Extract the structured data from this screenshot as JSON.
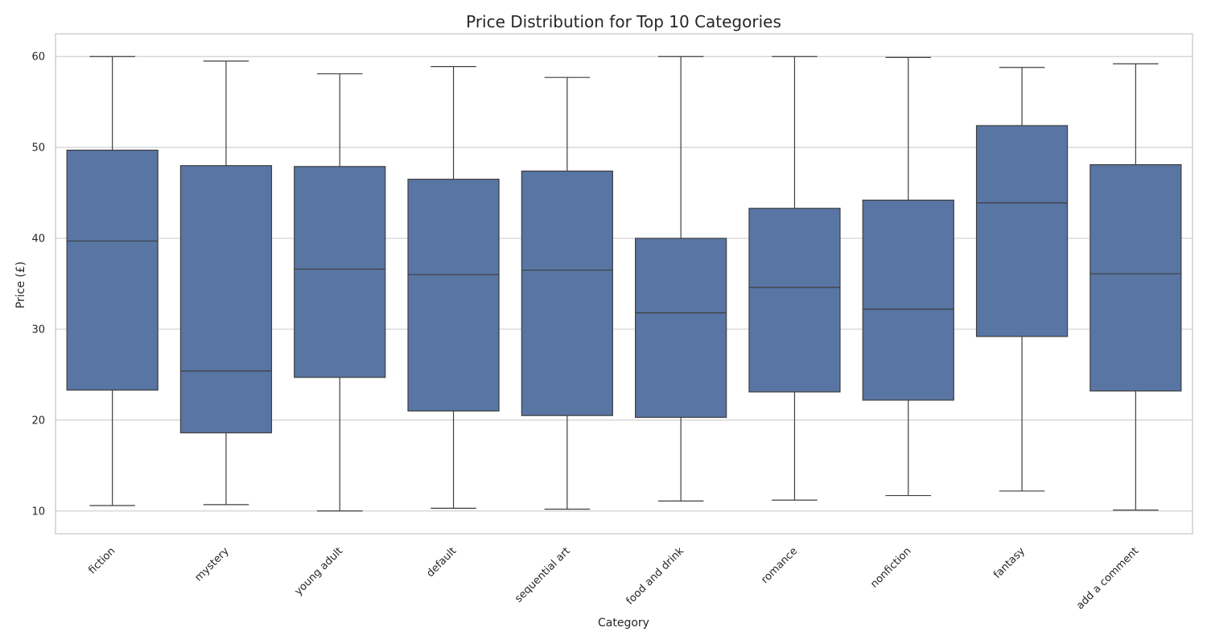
{
  "chart_data": {
    "type": "box",
    "title": "Price Distribution for Top 10 Categories",
    "xlabel": "Category",
    "ylabel": "Price (£)",
    "ylim": [
      7.5,
      62.5
    ],
    "yticks": [
      10,
      20,
      30,
      40,
      50,
      60
    ],
    "grid": true,
    "color": "#5875a4",
    "line_color": "#3f3f3f",
    "categories": [
      "fiction",
      "mystery",
      "young adult",
      "default",
      "sequential art",
      "food and drink",
      "romance",
      "nonfiction",
      "fantasy",
      "add a comment"
    ],
    "series": [
      {
        "values": [
          {
            "min": 10.6,
            "q1": 23.3,
            "median": 39.7,
            "q3": 49.7,
            "max": 60.0
          },
          {
            "min": 10.7,
            "q1": 18.6,
            "median": 25.4,
            "q3": 48.0,
            "max": 59.5
          },
          {
            "min": 10.0,
            "q1": 24.7,
            "median": 36.6,
            "q3": 47.9,
            "max": 58.1
          },
          {
            "min": 10.3,
            "q1": 21.0,
            "median": 36.0,
            "q3": 46.5,
            "max": 58.9
          },
          {
            "min": 10.2,
            "q1": 20.5,
            "median": 36.5,
            "q3": 47.4,
            "max": 57.7
          },
          {
            "min": 11.1,
            "q1": 20.3,
            "median": 31.8,
            "q3": 40.0,
            "max": 60.0
          },
          {
            "min": 11.2,
            "q1": 23.1,
            "median": 34.6,
            "q3": 43.3,
            "max": 60.0
          },
          {
            "min": 11.7,
            "q1": 22.2,
            "median": 32.2,
            "q3": 44.2,
            "max": 59.9
          },
          {
            "min": 12.2,
            "q1": 29.2,
            "median": 43.9,
            "q3": 52.4,
            "max": 58.8
          },
          {
            "min": 10.1,
            "q1": 23.2,
            "median": 36.1,
            "q3": 48.1,
            "max": 59.2
          }
        ]
      }
    ]
  }
}
